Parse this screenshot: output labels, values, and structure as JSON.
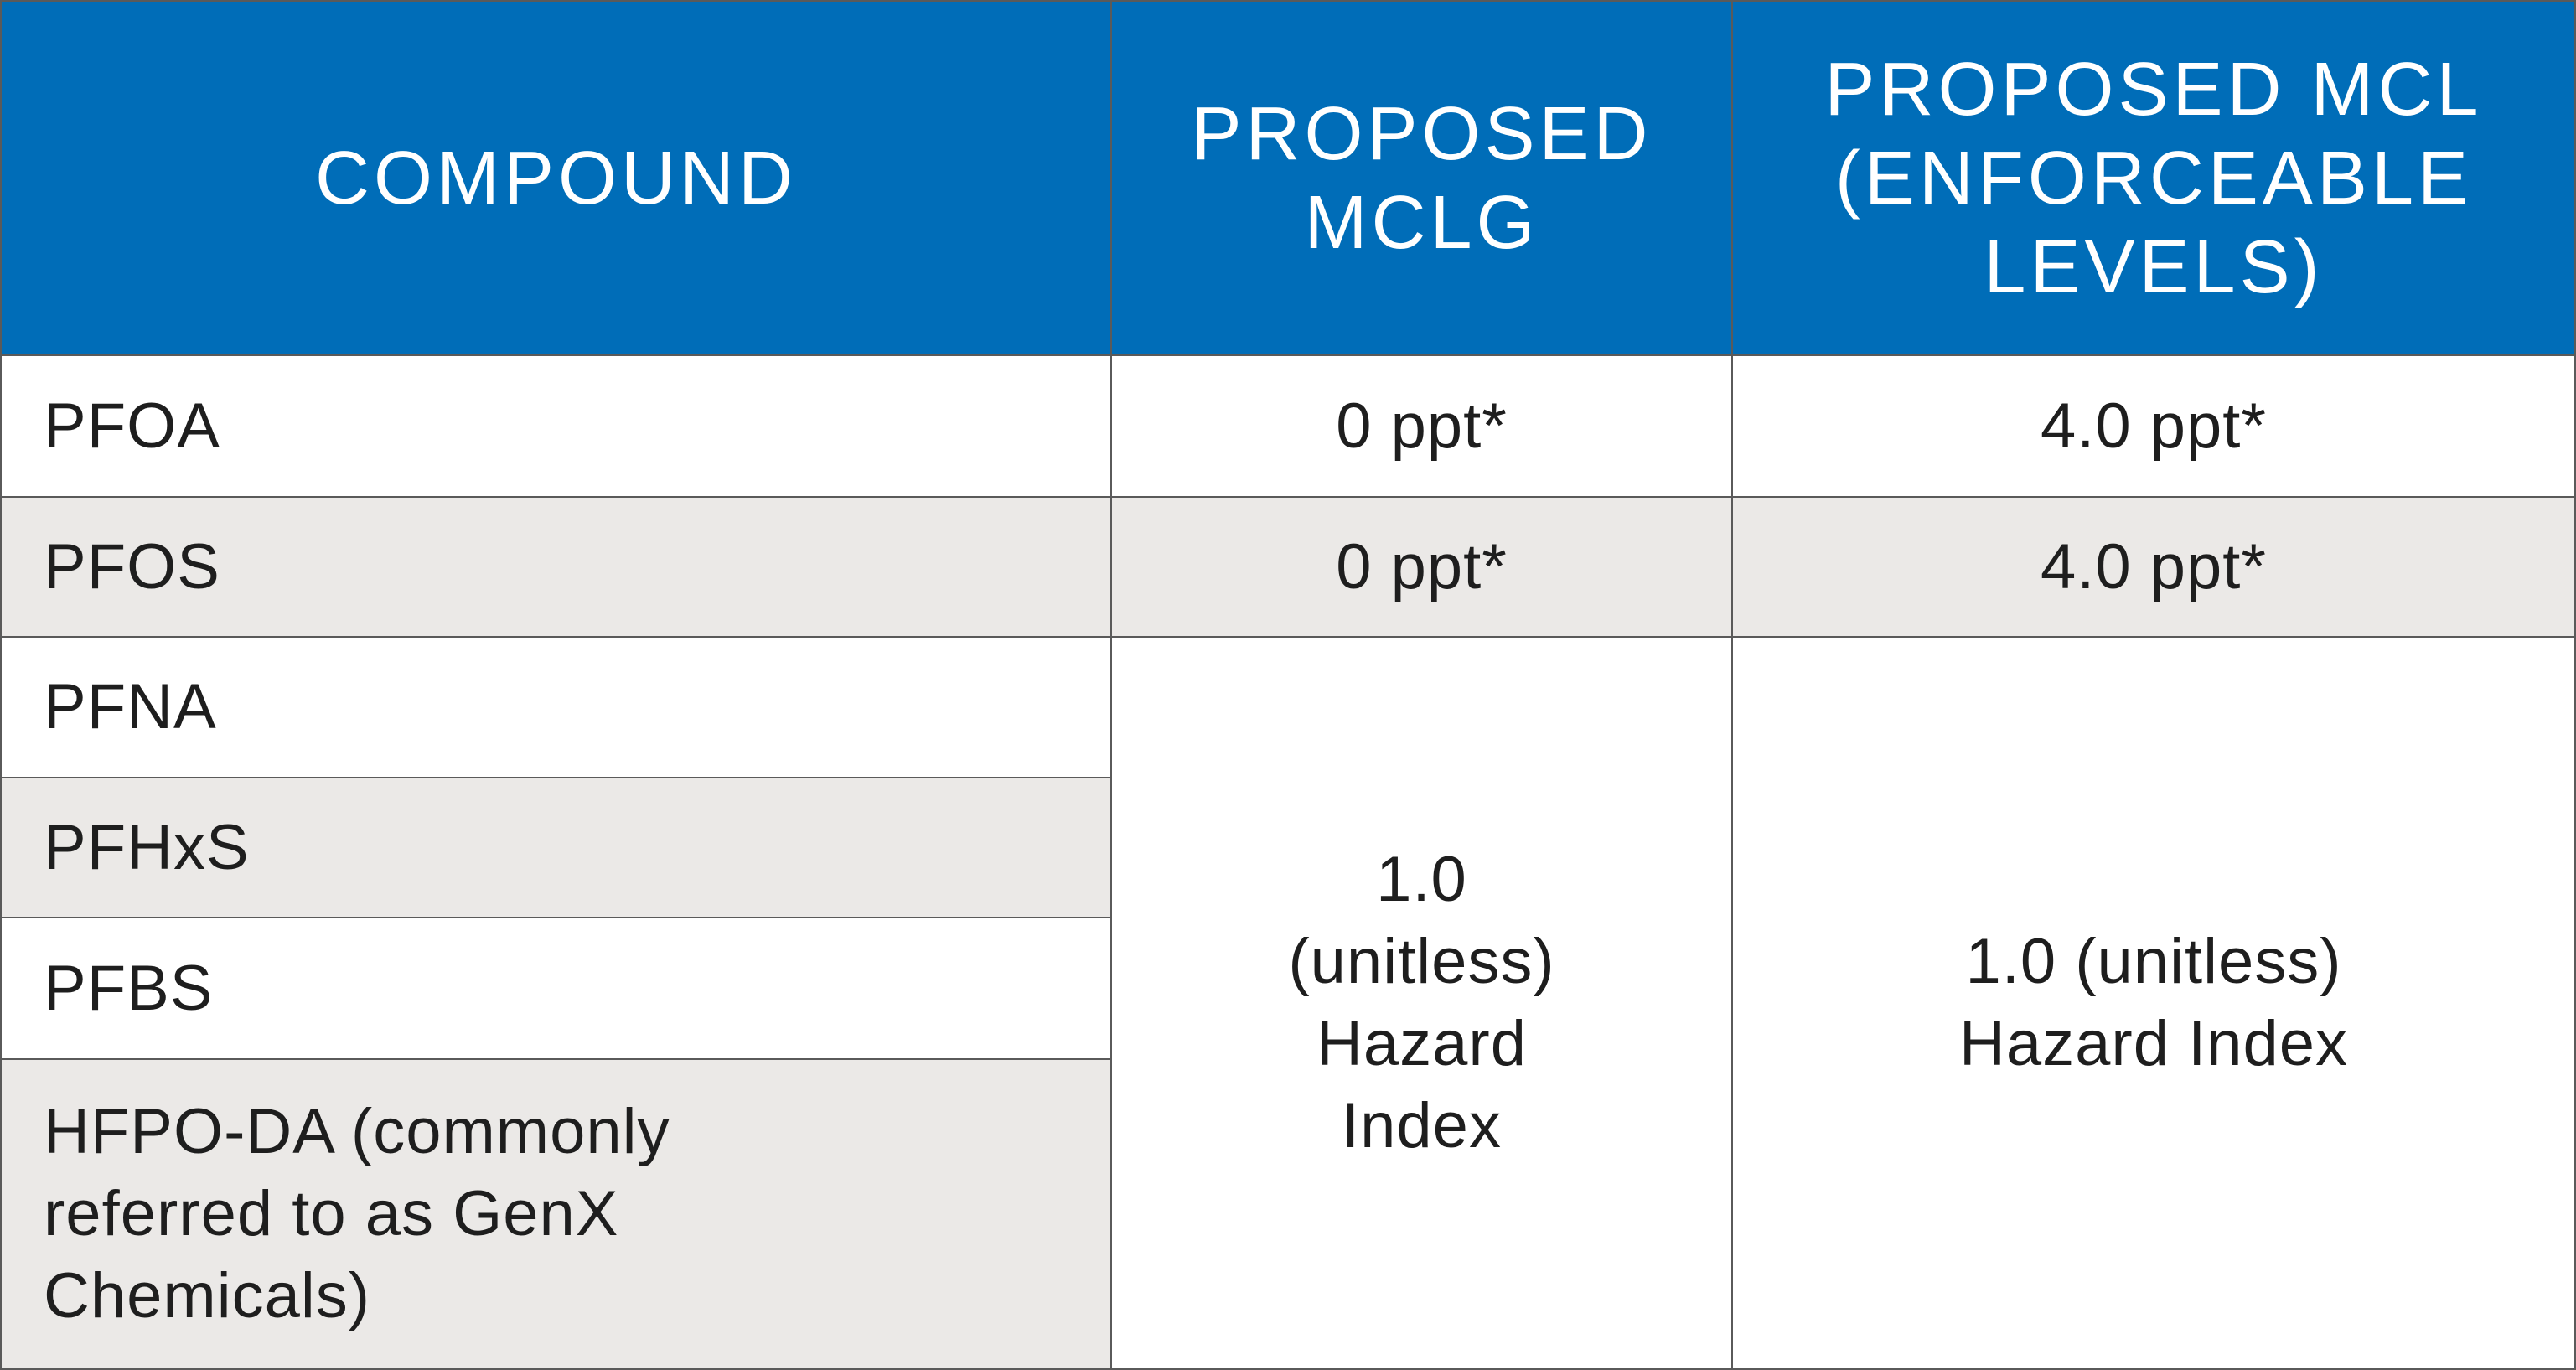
{
  "table": {
    "header": [
      "COMPOUND",
      "PROPOSED MCLG",
      "PROPOSED MCL (ENFORCEABLE LEVELS)"
    ],
    "rows": [
      [
        "PFOA",
        "0 ppt*",
        "4.0 ppt*"
      ],
      [
        "PFOS",
        "0 ppt*",
        "4.0 ppt*"
      ]
    ],
    "group": {
      "compounds": [
        "PFNA",
        "PFHxS",
        "PFBS",
        "HFPO-DA (commonly referred to as GenX Chemicals)"
      ],
      "mclg": "1.0 (unitless) Hazard Index",
      "mcl": "1.0 (unitless) Hazard Index"
    }
  }
}
